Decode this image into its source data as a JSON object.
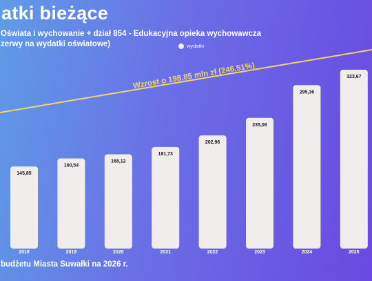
{
  "header": {
    "title": "atki bieżące",
    "subtitle_line1": "Oświata i wychowanie + dział 854 - Edukacyjna opieka wychowawcza",
    "subtitle_line2": "zerwy na wydatki oświatowe)"
  },
  "footer": {
    "text": "budżetu Miasta Suwałki na 2026 r."
  },
  "chart_data": {
    "type": "bar",
    "categories": [
      "2018",
      "2019",
      "2020",
      "2021",
      "2022",
      "2023",
      "2024",
      "2025"
    ],
    "series": [
      {
        "name": "wydatki",
        "values": [
          145.85,
          160.54,
          168.12,
          181.73,
          202.96,
          235.08,
          295.36,
          323.67
        ]
      }
    ],
    "data_labels": [
      "145,85",
      "160,54",
      "168,12",
      "181,73",
      "202,96",
      "235,08",
      "295,36",
      "323,67"
    ],
    "ylim": [
      0,
      350
    ],
    "grid": false,
    "legend": "top-center",
    "annotation": {
      "text": "Wzrost o 198,85 mln zł (246,51%)",
      "color": "#f2d46a"
    },
    "colors": {
      "bar": "#f1eded",
      "trend": "#f2d46a",
      "axis_text": "#ffffff"
    }
  }
}
